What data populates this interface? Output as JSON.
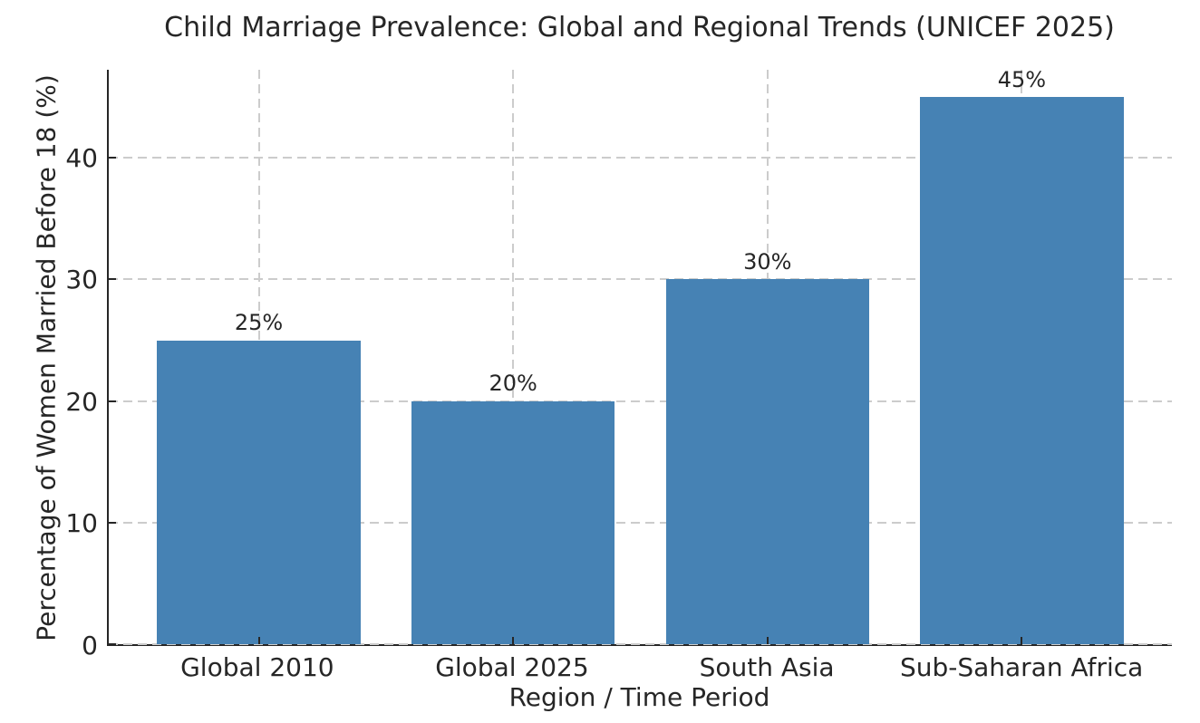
{
  "chart_data": {
    "type": "bar",
    "title": "Child Marriage Prevalence: Global and Regional Trends (UNICEF 2025)",
    "xlabel": "Region / Time Period",
    "ylabel": "Percentage of Women Married Before 18 (%)",
    "categories": [
      "Global 2010",
      "Global 2025",
      "South Asia",
      "Sub-Saharan Africa"
    ],
    "values": [
      25,
      20,
      30,
      45
    ],
    "value_labels": [
      "25%",
      "20%",
      "30%",
      "45%"
    ],
    "yticks": [
      0,
      10,
      20,
      30,
      40
    ],
    "ytick_labels": [
      "0",
      "10",
      "20",
      "30",
      "40"
    ],
    "ylim": [
      0,
      47.25
    ],
    "grid": "dashed gridlines on both axes",
    "legend": "none",
    "bar_color": "#4682B4",
    "grid_color": "#cccccc",
    "axis_color": "#262626",
    "text_color": "#262626",
    "background_color": "#ffffff"
  }
}
